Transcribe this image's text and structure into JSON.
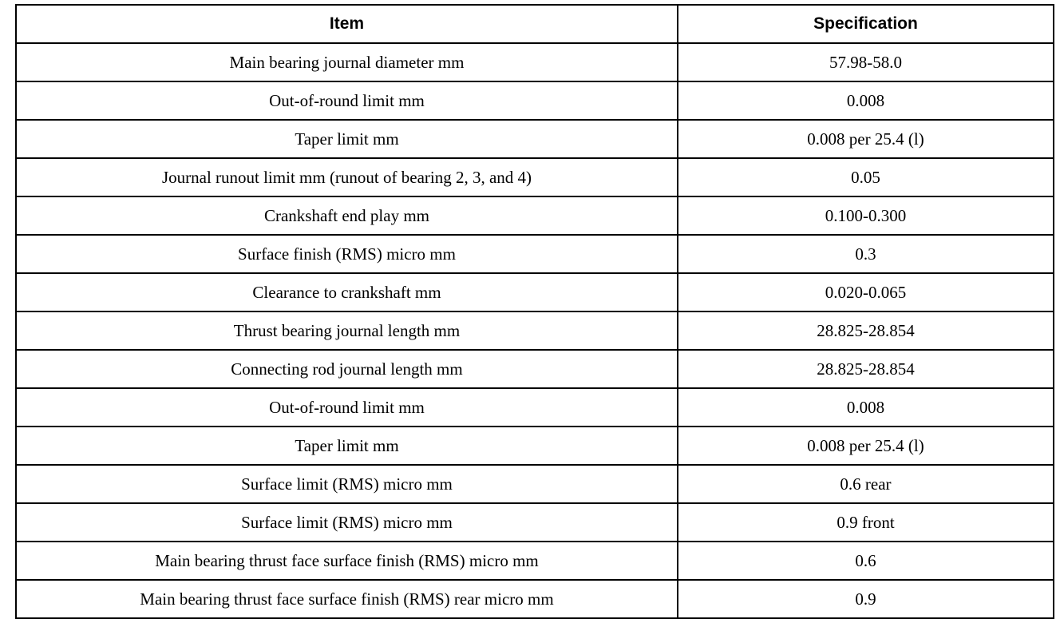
{
  "headers": {
    "item": "Item",
    "specification": "Specification"
  },
  "rows": [
    {
      "item": "Main bearing journal diameter mm",
      "spec": "57.98-58.0"
    },
    {
      "item": "Out-of-round limit mm",
      "spec": "0.008"
    },
    {
      "item": "Taper limit mm",
      "spec": "0.008 per 25.4 (l)"
    },
    {
      "item": "Journal runout limit mm (runout of bearing 2, 3, and 4)",
      "spec": "0.05"
    },
    {
      "item": "Crankshaft end play mm",
      "spec": "0.100-0.300"
    },
    {
      "item": "Surface finish (RMS) micro mm",
      "spec": "0.3"
    },
    {
      "item": "Clearance to crankshaft mm",
      "spec": "0.020-0.065"
    },
    {
      "item": "Thrust bearing journal length mm",
      "spec": "28.825-28.854"
    },
    {
      "item": "Connecting rod journal length mm",
      "spec": "28.825-28.854"
    },
    {
      "item": "Out-of-round limit mm",
      "spec": "0.008"
    },
    {
      "item": "Taper limit mm",
      "spec": "0.008 per 25.4 (l)"
    },
    {
      "item": "Surface limit (RMS) micro mm",
      "spec": "0.6 rear"
    },
    {
      "item": "Surface limit (RMS) micro mm",
      "spec": "0.9 front"
    },
    {
      "item": "Main bearing thrust face surface finish (RMS) micro mm",
      "spec": "0.6"
    },
    {
      "item": "Main bearing thrust face surface finish (RMS) rear micro mm",
      "spec": "0.9"
    }
  ]
}
